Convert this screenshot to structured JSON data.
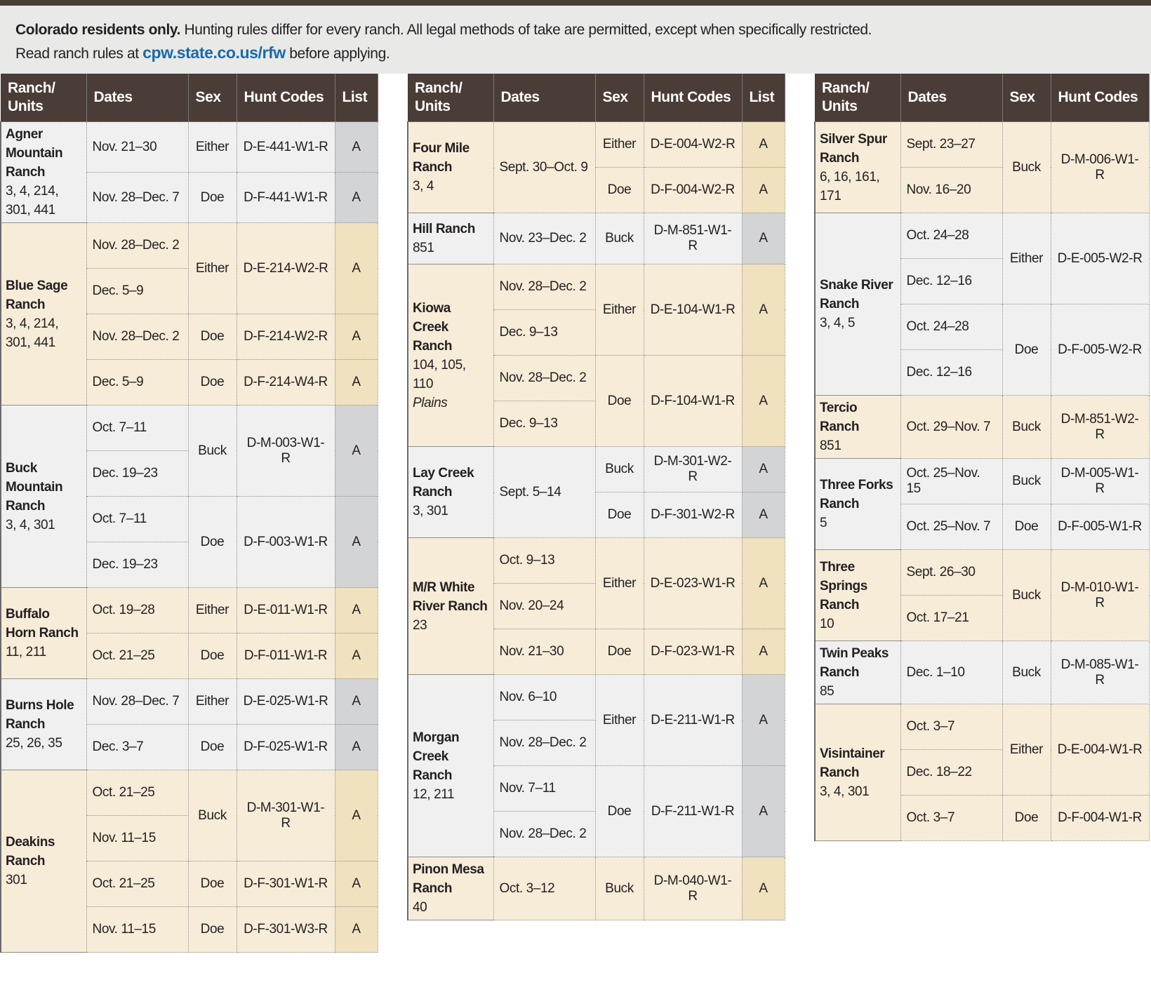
{
  "intro": {
    "bold": "Colorado residents only.",
    "text": " Hunting rules differ for every ranch. All legal methods of take are permitted, except when specifically restricted.",
    "line2_before": "Read ranch rules at ",
    "link": "cpw.state.co.us/rfw",
    "line2_after": " before applying."
  },
  "tables": [
    {
      "first_shade": "gray",
      "headers": [
        "Ranch/\nUnits",
        "Dates",
        "Sex",
        "Hunt Codes",
        "List"
      ],
      "rows": [
        [
          {
            "name": "Agner Mountain Ranch",
            "units": "3, 4, 214, 301, 441"
          },
          "Nov. 21–30",
          "Either",
          "D-E-441-W1-R",
          "A"
        ],
        [
          null,
          "Nov. 28–Dec. 7",
          "Doe",
          "D-F-441-W1-R",
          "A"
        ],
        [
          {
            "name": "Blue Sage Ranch",
            "units": "3, 4, 214, 301, 441"
          },
          "Nov. 28–Dec. 2",
          "Either",
          "D-E-214-W2-R",
          "A"
        ],
        [
          null,
          "Dec. 5–9",
          null,
          null,
          null
        ],
        [
          null,
          "Nov. 28–Dec. 2",
          "Doe",
          "D-F-214-W2-R",
          "A"
        ],
        [
          null,
          "Dec. 5–9",
          "Doe",
          "D-F-214-W4-R",
          "A"
        ],
        [
          {
            "name": "Buck Mountain Ranch",
            "units": "3, 4, 301"
          },
          "Oct. 7–11",
          "Buck",
          "D-M-003-W1-R",
          "A"
        ],
        [
          null,
          "Dec. 19–23",
          null,
          null,
          null
        ],
        [
          null,
          "Oct. 7–11",
          "Doe",
          "D-F-003-W1-R",
          "A"
        ],
        [
          null,
          "Dec. 19–23",
          null,
          null,
          null
        ],
        [
          {
            "name": "Buffalo Horn Ranch",
            "units": "11, 211"
          },
          "Oct. 19–28",
          "Either",
          "D-E-011-W1-R",
          "A"
        ],
        [
          null,
          "Oct. 21–25",
          "Doe",
          "D-F-011-W1-R",
          "A"
        ],
        [
          {
            "name": "Burns Hole Ranch",
            "units": "25, 26, 35"
          },
          "Nov. 28–Dec. 7",
          "Either",
          "D-E-025-W1-R",
          "A"
        ],
        [
          null,
          "Dec. 3–7",
          "Doe",
          "D-F-025-W1-R",
          "A"
        ],
        [
          {
            "name": "Deakins Ranch",
            "units": "301"
          },
          "Oct. 21–25",
          "Buck",
          "D-M-301-W1-R",
          "A"
        ],
        [
          null,
          "Nov. 11–15",
          null,
          null,
          null
        ],
        [
          null,
          "Oct. 21–25",
          "Doe",
          "D-F-301-W1-R",
          "A"
        ],
        [
          null,
          "Nov. 11–15",
          "Doe",
          "D-F-301-W3-R",
          "A"
        ]
      ]
    },
    {
      "first_shade": "beige",
      "headers": [
        "Ranch/\nUnits",
        "Dates",
        "Sex",
        "Hunt Codes",
        "List"
      ],
      "rows": [
        [
          {
            "name": "Four Mile Ranch",
            "units": "3, 4"
          },
          "Sept. 30–Oct. 9",
          "Either",
          "D-E-004-W2-R",
          "A"
        ],
        [
          null,
          null,
          "Doe",
          "D-F-004-W2-R",
          "A"
        ],
        [
          {
            "name": "Hill Ranch",
            "units": "851"
          },
          "Nov. 23–Dec. 2",
          "Buck",
          "D-M-851-W1-R",
          "A"
        ],
        [
          {
            "name": "Kiowa Creek Ranch",
            "units": "104, 105, 110",
            "note": "Plains"
          },
          "Nov. 28–Dec. 2",
          "Either",
          "D-E-104-W1-R",
          "A"
        ],
        [
          null,
          "Dec. 9–13",
          null,
          null,
          null
        ],
        [
          null,
          "Nov. 28–Dec. 2",
          "Doe",
          "D-F-104-W1-R",
          "A"
        ],
        [
          null,
          "Dec. 9–13",
          null,
          null,
          null
        ],
        [
          {
            "name": "Lay Creek Ranch",
            "units": "3, 301"
          },
          "Sept. 5–14",
          "Buck",
          "D-M-301-W2-R",
          "A"
        ],
        [
          null,
          null,
          "Doe",
          "D-F-301-W2-R",
          "A"
        ],
        [
          {
            "name": "M/R White River Ranch",
            "units": "23"
          },
          "Oct. 9–13",
          "Either",
          "D-E-023-W1-R",
          "A"
        ],
        [
          null,
          "Nov. 20–24",
          null,
          null,
          null
        ],
        [
          null,
          "Nov. 21–30",
          "Doe",
          "D-F-023-W1-R",
          "A"
        ],
        [
          {
            "name": "Morgan Creek Ranch",
            "units": "12, 211"
          },
          "Nov. 6–10",
          "Either",
          "D-E-211-W1-R",
          "A"
        ],
        [
          null,
          "Nov. 28–Dec. 2",
          null,
          null,
          null
        ],
        [
          null,
          "Nov. 7–11",
          "Doe",
          "D-F-211-W1-R",
          "A"
        ],
        [
          null,
          "Nov. 28–Dec. 2",
          null,
          null,
          null
        ],
        [
          {
            "name": "Pinon Mesa Ranch",
            "units": "40"
          },
          "Oct. 3–12",
          "Buck",
          "D-M-040-W1-R",
          "A"
        ]
      ]
    },
    {
      "first_shade": "beige",
      "headers": [
        "Ranch/\nUnits",
        "Dates",
        "Sex",
        "Hunt Codes"
      ],
      "rows": [
        [
          {
            "name": "Silver Spur Ranch",
            "units": "6, 16, 161, 171"
          },
          "Sept. 23–27",
          "Buck",
          "D-M-006-W1-R"
        ],
        [
          null,
          "Nov. 16–20",
          null,
          null
        ],
        [
          {
            "name": "Snake River Ranch",
            "units": "3, 4, 5"
          },
          "Oct. 24–28",
          "Either",
          "D-E-005-W2-R"
        ],
        [
          null,
          "Dec. 12–16",
          null,
          null
        ],
        [
          null,
          "Oct. 24–28",
          "Doe",
          "D-F-005-W2-R"
        ],
        [
          null,
          "Dec. 12–16",
          null,
          null
        ],
        [
          {
            "name": "Tercio Ranch",
            "units": "851"
          },
          "Oct. 29–Nov. 7",
          "Buck",
          "D-M-851-W2-R"
        ],
        [
          {
            "name": "Three Forks Ranch",
            "units": "5"
          },
          "Oct. 25–Nov. 15",
          "Buck",
          "D-M-005-W1-R"
        ],
        [
          null,
          "Oct. 25–Nov. 7",
          "Doe",
          "D-F-005-W1-R"
        ],
        [
          {
            "name": "Three Springs Ranch",
            "units": "10"
          },
          "Sept. 26–30",
          "Buck",
          "D-M-010-W1-R"
        ],
        [
          null,
          "Oct. 17–21",
          null,
          null
        ],
        [
          {
            "name": "Twin Peaks Ranch",
            "units": "85"
          },
          "Dec. 1–10",
          "Buck",
          "D-M-085-W1-R"
        ],
        [
          {
            "name": "Visintainer Ranch",
            "units": "3, 4, 301"
          },
          "Oct. 3–7",
          "Either",
          "D-E-004-W1-R"
        ],
        [
          null,
          "Dec. 18–22",
          null,
          null
        ],
        [
          null,
          "Oct. 3–7",
          "Doe",
          "D-F-004-W1-R"
        ]
      ]
    }
  ]
}
